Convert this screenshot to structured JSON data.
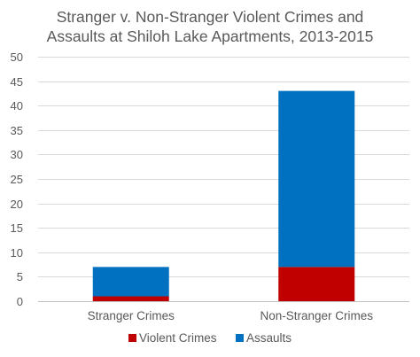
{
  "chart_data": {
    "type": "bar",
    "stacked": true,
    "title_lines": [
      "Stranger v. Non-Stranger Violent Crimes and",
      "Assaults at Shiloh Lake Apartments, 2013-2015"
    ],
    "categories": [
      "Stranger Crimes",
      "Non-Stranger Crimes"
    ],
    "series": [
      {
        "name": "Violent Crimes",
        "values": [
          1,
          7
        ],
        "color": "#c00000"
      },
      {
        "name": "Assaults",
        "values": [
          6,
          36
        ],
        "color": "#0070c0"
      }
    ],
    "ylim": [
      0,
      50
    ],
    "yticks": [
      "0",
      "5",
      "10",
      "15",
      "20",
      "25",
      "30",
      "35",
      "40",
      "45",
      "50"
    ],
    "grid": true,
    "legend_position": "bottom"
  }
}
